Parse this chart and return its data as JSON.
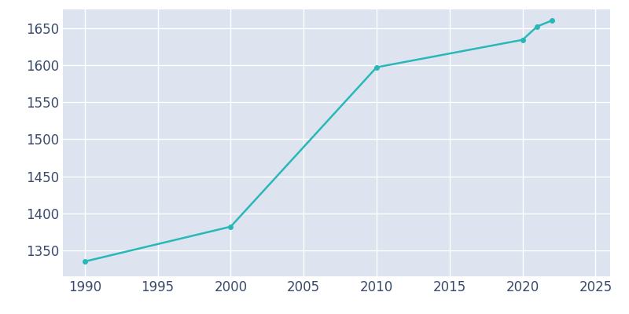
{
  "years": [
    1990,
    2000,
    2010,
    2020,
    2021,
    2022
  ],
  "population": [
    1335,
    1382,
    1597,
    1634,
    1652,
    1660
  ],
  "line_color": "#29b8b8",
  "marker": "o",
  "marker_size": 4,
  "linewidth": 1.8,
  "background_color": "#dde4ef",
  "plot_bg_color": "#dde4ef",
  "outer_bg_color": "#ffffff",
  "grid_color": "#ffffff",
  "tick_color": "#3a4a6b",
  "tick_fontsize": 12,
  "xlim": [
    1988.5,
    2026
  ],
  "ylim": [
    1315,
    1675
  ],
  "xticks": [
    1990,
    1995,
    2000,
    2005,
    2010,
    2015,
    2020,
    2025
  ],
  "yticks": [
    1350,
    1400,
    1450,
    1500,
    1550,
    1600,
    1650
  ]
}
